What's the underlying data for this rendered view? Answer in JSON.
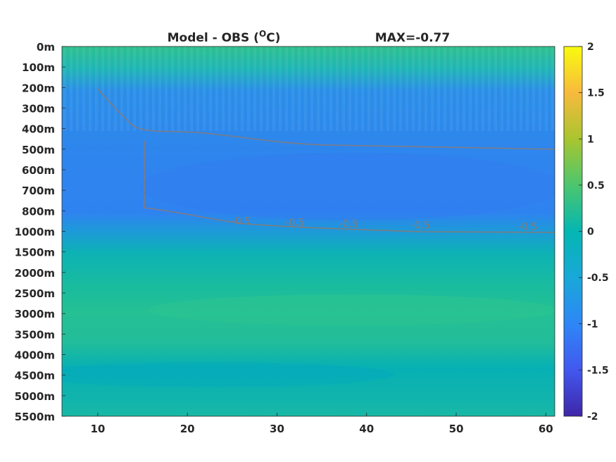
{
  "chart_data": {
    "type": "heatmap",
    "title": "Model - OBS (°C)",
    "title_parts": {
      "main": "Model - OBS (",
      "sup": "O",
      "unit": "C)"
    },
    "subtitle": "MAX=-0.77",
    "xlabel": "",
    "ylabel": "",
    "x_ticks": [
      10,
      20,
      30,
      40,
      50,
      60
    ],
    "xlim": [
      6,
      61
    ],
    "depth_levels": [
      "0m",
      "100m",
      "200m",
      "300m",
      "400m",
      "500m",
      "600m",
      "700m",
      "800m",
      "1000m",
      "1500m",
      "2000m",
      "2500m",
      "3000m",
      "3500m",
      "4000m",
      "4500m",
      "5000m",
      "5500m"
    ],
    "colorbar": {
      "ticks": [
        2,
        1.5,
        1,
        0.5,
        0,
        -0.5,
        -1,
        -1.5,
        -2
      ],
      "tick_labels": [
        "2",
        "1.5",
        "1",
        "0.5",
        "0",
        "-0.5",
        "-1",
        "-1.5",
        "-2"
      ],
      "clim": [
        -2,
        2
      ],
      "colormap": "parula"
    },
    "contour_level": -0.5,
    "contour_labels": [
      "-0.5",
      "-0.5",
      "-0.5",
      "-0.5",
      "-0.5"
    ],
    "contour_label_x": [
      26,
      32,
      38,
      46,
      58
    ],
    "grid": false,
    "approx_field_by_depth": [
      {
        "depth": "0m",
        "value": 0.1
      },
      {
        "depth": "100m",
        "value": 0.0
      },
      {
        "depth": "200m",
        "value": -0.45
      },
      {
        "depth": "300m",
        "value": -0.6
      },
      {
        "depth": "400m",
        "value": -0.65
      },
      {
        "depth": "500m",
        "value": -0.7
      },
      {
        "depth": "600m",
        "value": -0.75
      },
      {
        "depth": "700m",
        "value": -0.77
      },
      {
        "depth": "800m",
        "value": -0.7
      },
      {
        "depth": "1000m",
        "value": -0.4
      },
      {
        "depth": "1500m",
        "value": -0.05
      },
      {
        "depth": "2000m",
        "value": 0.0
      },
      {
        "depth": "2500m",
        "value": 0.05
      },
      {
        "depth": "3000m",
        "value": 0.1
      },
      {
        "depth": "3500m",
        "value": 0.05
      },
      {
        "depth": "4000m",
        "value": -0.1
      },
      {
        "depth": "4500m",
        "value": -0.15
      },
      {
        "depth": "5000m",
        "value": -0.1
      },
      {
        "depth": "5500m",
        "value": -0.05
      }
    ]
  }
}
